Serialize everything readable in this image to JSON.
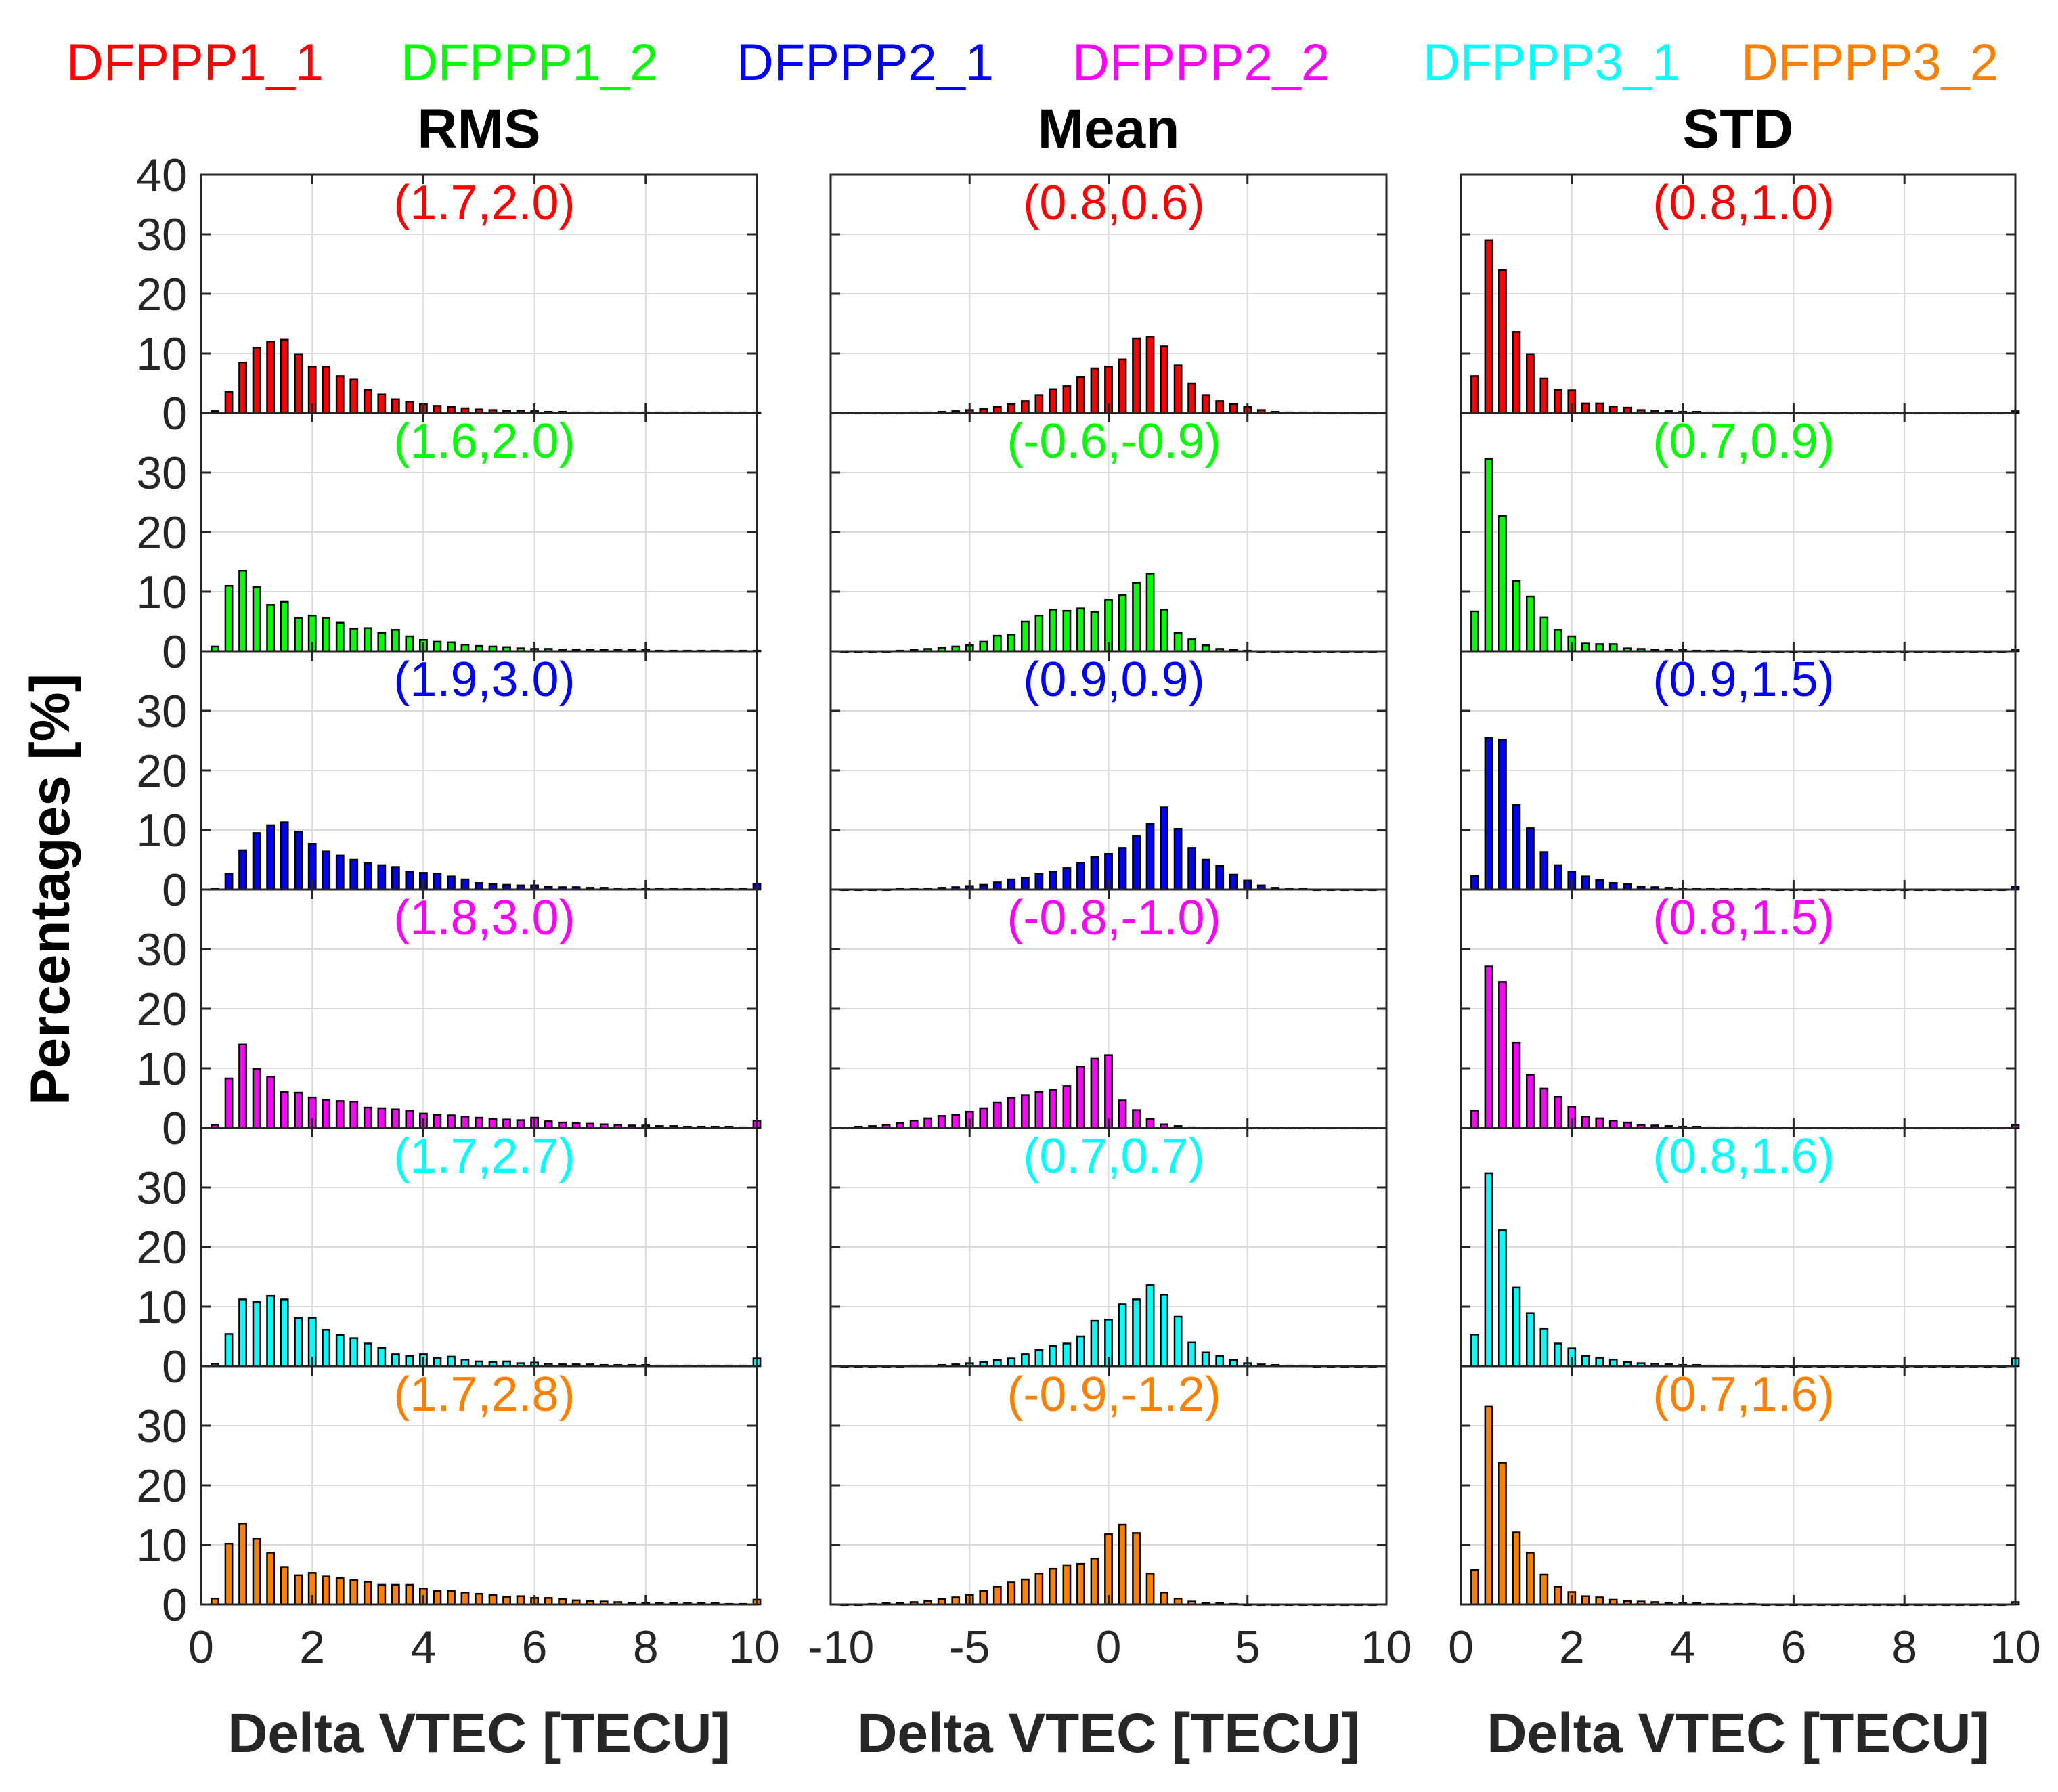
{
  "legend": [
    {
      "label": "DFPPP1_1",
      "color": "#ff0000"
    },
    {
      "label": "DFPPP1_2",
      "color": "#00ff00"
    },
    {
      "label": "DFPPP2_1",
      "color": "#0000ff"
    },
    {
      "label": "DFPPP2_2",
      "color": "#ff00ff"
    },
    {
      "label": "DFPPP3_1",
      "color": "#00ffff"
    },
    {
      "label": "DFPPP3_2",
      "color": "#ff8000"
    }
  ],
  "ylabel": "Percentages [%]",
  "chart_data": [
    {
      "type": "bar",
      "title": "RMS",
      "xlabel": "Delta VTEC [TECU]",
      "xlim": [
        0,
        10
      ],
      "xticks": [
        "0",
        "2",
        "4",
        "6",
        "8",
        "10"
      ],
      "x": [
        0.25,
        0.5,
        0.75,
        1.0,
        1.25,
        1.5,
        1.75,
        2.0,
        2.25,
        2.5,
        2.75,
        3.0,
        3.25,
        3.5,
        3.75,
        4.0,
        4.25,
        4.5,
        4.75,
        5.0,
        5.25,
        5.5,
        5.75,
        6.0,
        6.25,
        6.5,
        6.75,
        7.0,
        7.25,
        7.5,
        7.75,
        8.0,
        8.25,
        8.5,
        8.75,
        9.0,
        9.25,
        9.5,
        9.75,
        10.0
      ],
      "series": [
        {
          "name": "DFPPP1_1",
          "annotation": "(1.7,2.0)",
          "ylim": [
            0,
            40
          ],
          "yticks": [
            "0",
            "10",
            "20",
            "30",
            "40"
          ],
          "values": [
            0.3,
            3.5,
            8.5,
            11,
            12,
            12.3,
            9.8,
            7.8,
            7.8,
            6.2,
            5.6,
            3.9,
            3.1,
            2.3,
            1.9,
            1.5,
            1.2,
            1.0,
            0.8,
            0.6,
            0.5,
            0.4,
            0.4,
            0.3,
            0.2,
            0.2,
            0.1,
            0.1,
            0.1,
            0.1,
            0.1,
            0.1,
            0.1,
            0.1,
            0.1,
            0.1,
            0.1,
            0.1,
            0.1,
            0.1
          ]
        },
        {
          "name": "DFPPP1_2",
          "annotation": "(1.6,2.0)",
          "ylim": [
            0,
            40
          ],
          "yticks": [
            "0",
            "10",
            "20",
            "30"
          ],
          "values": [
            0.8,
            11,
            13.5,
            10.8,
            7.8,
            8.3,
            5.6,
            6.0,
            5.6,
            4.8,
            3.8,
            3.9,
            3.1,
            3.6,
            2.5,
            1.9,
            1.6,
            1.5,
            1.1,
            0.9,
            0.8,
            0.7,
            0.5,
            0.4,
            0.4,
            0.3,
            0.3,
            0.2,
            0.2,
            0.2,
            0.2,
            0.2,
            0.1,
            0.1,
            0.1,
            0.1,
            0.1,
            0.1,
            0.1,
            0.1
          ]
        },
        {
          "name": "DFPPP2_1",
          "annotation": "(1.9,3.0)",
          "ylim": [
            0,
            40
          ],
          "yticks": [
            "0",
            "10",
            "20",
            "30"
          ],
          "values": [
            0.2,
            2.7,
            6.6,
            9.5,
            10.8,
            11.3,
            9.7,
            7.7,
            6.4,
            5.7,
            5.0,
            4.4,
            4.1,
            3.8,
            3.0,
            2.8,
            2.7,
            2.2,
            1.7,
            1.1,
            0.9,
            0.8,
            0.7,
            0.7,
            0.5,
            0.4,
            0.4,
            0.3,
            0.3,
            0.2,
            0.2,
            0.2,
            0.1,
            0.1,
            0.1,
            0.1,
            0.1,
            0.1,
            0.1,
            1.0
          ]
        },
        {
          "name": "DFPPP2_2",
          "annotation": "(1.8,3.0)",
          "ylim": [
            0,
            40
          ],
          "yticks": [
            "0",
            "10",
            "20",
            "30"
          ],
          "values": [
            0.5,
            8.3,
            14.0,
            9.9,
            8.6,
            6.0,
            5.9,
            5.1,
            4.7,
            4.5,
            4.4,
            3.4,
            3.3,
            3.1,
            2.9,
            2.4,
            2.2,
            2.1,
            1.9,
            1.7,
            1.5,
            1.4,
            1.3,
            1.7,
            1.1,
            0.9,
            0.8,
            0.7,
            0.6,
            0.5,
            0.4,
            0.4,
            0.3,
            0.3,
            0.2,
            0.2,
            0.2,
            0.2,
            0.1,
            1.2
          ]
        },
        {
          "name": "DFPPP3_1",
          "annotation": "(1.7,2.7)",
          "ylim": [
            0,
            40
          ],
          "yticks": [
            "0",
            "10",
            "20",
            "30"
          ],
          "values": [
            0.4,
            5.4,
            11.2,
            10.8,
            11.8,
            11.2,
            8.1,
            8.1,
            6.1,
            5.2,
            4.7,
            3.8,
            3.1,
            2.0,
            1.7,
            2.0,
            1.4,
            1.6,
            1.1,
            0.8,
            0.7,
            0.8,
            0.5,
            0.6,
            0.4,
            0.3,
            0.3,
            0.3,
            0.2,
            0.2,
            0.2,
            0.2,
            0.1,
            0.1,
            0.1,
            0.1,
            0.1,
            0.1,
            0.1,
            1.3
          ]
        },
        {
          "name": "DFPPP3_2",
          "annotation": "(1.7,2.8)",
          "ylim": [
            0,
            40
          ],
          "yticks": [
            "0",
            "10",
            "20",
            "30"
          ],
          "values": [
            1.0,
            10.2,
            13.6,
            11.0,
            8.7,
            6.3,
            4.9,
            5.3,
            4.7,
            4.4,
            4.1,
            3.8,
            3.3,
            3.3,
            3.3,
            2.7,
            2.3,
            2.3,
            2.0,
            1.8,
            1.6,
            1.3,
            1.4,
            1.1,
            1.1,
            0.9,
            0.7,
            0.6,
            0.5,
            0.4,
            0.3,
            0.3,
            0.2,
            0.2,
            0.2,
            0.2,
            0.2,
            0.1,
            0.1,
            0.8
          ]
        }
      ]
    },
    {
      "type": "bar",
      "title": "Mean",
      "xlabel": "Delta VTEC [TECU]",
      "xlim": [
        -10,
        10
      ],
      "xticks": [
        "-10",
        "-5",
        "0",
        "5",
        "10"
      ],
      "x": [
        -9.5,
        -9.0,
        -8.5,
        -8.0,
        -7.5,
        -7.0,
        -6.5,
        -6.0,
        -5.5,
        -5.0,
        -4.5,
        -4.0,
        -3.5,
        -3.0,
        -2.5,
        -2.0,
        -1.5,
        -1.0,
        -0.5,
        0.0,
        0.5,
        1.0,
        1.5,
        2.0,
        2.5,
        3.0,
        3.5,
        4.0,
        4.5,
        5.0,
        5.5,
        6.0,
        6.5,
        7.0,
        7.5,
        8.0,
        8.5,
        9.0,
        9.5
      ],
      "series": [
        {
          "name": "DFPPP1_1",
          "annotation": "(0.8,0.6)",
          "ylim": [
            0,
            40
          ],
          "yticks": [],
          "values": [
            0,
            0,
            0,
            0,
            0,
            0.1,
            0.1,
            0.2,
            0.3,
            0.5,
            0.7,
            1.0,
            1.5,
            2.0,
            3.0,
            4.0,
            4.5,
            6.0,
            7.5,
            7.8,
            9.0,
            12.5,
            12.8,
            11.2,
            8.0,
            5.0,
            3.0,
            2.0,
            1.5,
            1.0,
            0.5,
            0.2,
            0.1,
            0.1,
            0.1,
            0,
            0,
            0,
            0
          ]
        },
        {
          "name": "DFPPP1_2",
          "annotation": "(-0.6,-0.9)",
          "ylim": [
            0,
            40
          ],
          "yticks": [],
          "values": [
            0,
            0,
            0,
            0,
            0.1,
            0.2,
            0.4,
            0.6,
            0.8,
            1.0,
            1.6,
            2.6,
            2.8,
            5.0,
            6.0,
            7.0,
            6.8,
            7.2,
            6.6,
            8.6,
            9.4,
            11.5,
            13.0,
            7.0,
            3.1,
            2.0,
            1.0,
            0.4,
            0.2,
            0.1,
            0,
            0,
            0,
            0,
            0,
            0,
            0,
            0,
            0
          ]
        },
        {
          "name": "DFPPP2_1",
          "annotation": "(0.9,0.9)",
          "ylim": [
            0,
            40
          ],
          "yticks": [],
          "values": [
            0,
            0,
            0,
            0,
            0.1,
            0.1,
            0.2,
            0.3,
            0.4,
            0.6,
            0.8,
            1.2,
            1.7,
            2.0,
            2.6,
            3.0,
            3.6,
            4.5,
            5.5,
            6.0,
            7.0,
            9.0,
            11.0,
            13.8,
            10.2,
            7.0,
            5.0,
            4.0,
            2.5,
            1.5,
            0.7,
            0.3,
            0.1,
            0.1,
            0,
            0,
            0,
            0,
            0
          ]
        },
        {
          "name": "DFPPP2_2",
          "annotation": "(-0.8,-1.0)",
          "ylim": [
            0,
            40
          ],
          "yticks": [],
          "values": [
            0,
            0.2,
            0.3,
            0.5,
            0.8,
            1.2,
            1.6,
            2.0,
            2.2,
            2.7,
            3.3,
            4.2,
            5.0,
            5.5,
            6.0,
            6.4,
            7.0,
            10.3,
            11.6,
            12.2,
            4.6,
            3.0,
            1.5,
            0.6,
            0.3,
            0.1,
            0,
            0,
            0,
            0,
            0,
            0,
            0,
            0,
            0,
            0,
            0,
            0,
            0
          ]
        },
        {
          "name": "DFPPP3_1",
          "annotation": "(0.7,0.7)",
          "ylim": [
            0,
            40
          ],
          "yticks": [],
          "values": [
            0,
            0,
            0,
            0,
            0,
            0.1,
            0.1,
            0.2,
            0.3,
            0.5,
            0.7,
            1.0,
            1.3,
            2.0,
            2.7,
            3.4,
            3.8,
            5.0,
            7.6,
            7.8,
            10.4,
            11.2,
            13.6,
            12.0,
            8.3,
            4.0,
            2.3,
            1.7,
            1.0,
            0.5,
            0.3,
            0.2,
            0.1,
            0.1,
            0,
            0,
            0,
            0,
            0
          ]
        },
        {
          "name": "DFPPP3_2",
          "annotation": "(-0.9,-1.2)",
          "ylim": [
            0,
            40
          ],
          "yticks": [],
          "values": [
            0,
            0,
            0.1,
            0.2,
            0.3,
            0.4,
            0.6,
            0.9,
            1.2,
            1.6,
            2.3,
            3.0,
            3.7,
            4.2,
            5.2,
            6.0,
            6.6,
            6.8,
            7.7,
            11.8,
            13.4,
            12.0,
            5.2,
            2.0,
            1.0,
            0.5,
            0.3,
            0.2,
            0.1,
            0,
            0,
            0,
            0,
            0,
            0,
            0,
            0,
            0,
            0
          ]
        }
      ]
    },
    {
      "type": "bar",
      "title": "STD",
      "xlabel": "Delta VTEC [TECU]",
      "xlim": [
        0,
        10
      ],
      "xticks": [
        "0",
        "2",
        "4",
        "6",
        "8",
        "10"
      ],
      "x": [
        0.25,
        0.5,
        0.75,
        1.0,
        1.25,
        1.5,
        1.75,
        2.0,
        2.25,
        2.5,
        2.75,
        3.0,
        3.25,
        3.5,
        3.75,
        4.0,
        4.25,
        4.5,
        4.75,
        5.0,
        5.25,
        5.5,
        5.75,
        6.0,
        6.25,
        6.5,
        6.75,
        7.0,
        7.25,
        7.5,
        7.75,
        8.0,
        8.25,
        8.5,
        8.75,
        9.0,
        9.25,
        9.5,
        9.75,
        10.0
      ],
      "series": [
        {
          "name": "DFPPP1_1",
          "annotation": "(0.8,1.0)",
          "ylim": [
            0,
            40
          ],
          "yticks": [],
          "values": [
            6.2,
            29.0,
            24.0,
            13.6,
            9.8,
            5.8,
            3.9,
            3.8,
            1.6,
            1.6,
            1.1,
            0.9,
            0.5,
            0.4,
            0.3,
            0.2,
            0.2,
            0.1,
            0.1,
            0.1,
            0.1,
            0.1,
            0,
            0,
            0,
            0,
            0,
            0,
            0,
            0,
            0,
            0,
            0,
            0,
            0,
            0,
            0,
            0,
            0,
            0.3
          ]
        },
        {
          "name": "DFPPP1_2",
          "annotation": "(0.7,0.9)",
          "ylim": [
            0,
            40
          ],
          "yticks": [],
          "values": [
            6.7,
            32.3,
            22.7,
            11.8,
            9.2,
            5.7,
            3.6,
            2.5,
            1.3,
            1.2,
            1.2,
            0.5,
            0.4,
            0.3,
            0.2,
            0.2,
            0.1,
            0.1,
            0.1,
            0.1,
            0,
            0,
            0,
            0,
            0,
            0,
            0,
            0,
            0,
            0,
            0,
            0,
            0,
            0,
            0,
            0,
            0,
            0,
            0,
            0.3
          ]
        },
        {
          "name": "DFPPP2_1",
          "annotation": "(0.9,1.5)",
          "ylim": [
            0,
            40
          ],
          "yticks": [],
          "values": [
            2.3,
            25.5,
            25.2,
            14.2,
            10.3,
            6.3,
            4.1,
            3.0,
            2.2,
            1.6,
            1.1,
            0.9,
            0.5,
            0.4,
            0.3,
            0.2,
            0.2,
            0.1,
            0.1,
            0.1,
            0.1,
            0.1,
            0,
            0,
            0,
            0,
            0,
            0,
            0,
            0,
            0,
            0,
            0,
            0,
            0,
            0,
            0,
            0,
            0,
            0.5
          ]
        },
        {
          "name": "DFPPP2_2",
          "annotation": "(0.8,1.5)",
          "ylim": [
            0,
            40
          ],
          "yticks": [],
          "values": [
            2.9,
            27.1,
            24.5,
            14.3,
            8.9,
            6.6,
            5.2,
            3.6,
            1.9,
            1.6,
            1.2,
            0.9,
            0.5,
            0.4,
            0.3,
            0.2,
            0.2,
            0.1,
            0.1,
            0.1,
            0.1,
            0,
            0,
            0,
            0,
            0,
            0,
            0,
            0,
            0,
            0,
            0,
            0,
            0,
            0,
            0,
            0,
            0,
            0,
            0.5
          ]
        },
        {
          "name": "DFPPP3_1",
          "annotation": "(0.8,1.6)",
          "ylim": [
            0,
            40
          ],
          "yticks": [],
          "values": [
            5.3,
            32.4,
            22.8,
            13.2,
            8.9,
            6.3,
            3.8,
            3.0,
            1.7,
            1.4,
            1.1,
            0.7,
            0.5,
            0.4,
            0.3,
            0.2,
            0.2,
            0.1,
            0.1,
            0.1,
            0.1,
            0,
            0,
            0,
            0,
            0,
            0,
            0,
            0,
            0,
            0,
            0,
            0,
            0,
            0,
            0,
            0,
            0,
            0,
            1.3
          ]
        },
        {
          "name": "DFPPP3_2",
          "annotation": "(0.7,1.6)",
          "ylim": [
            0,
            40
          ],
          "yticks": [],
          "values": [
            5.8,
            33.2,
            23.8,
            12.1,
            8.7,
            5.0,
            3.0,
            2.1,
            1.4,
            1.2,
            0.8,
            0.6,
            0.5,
            0.4,
            0.3,
            0.2,
            0.2,
            0.1,
            0.1,
            0.1,
            0.1,
            0,
            0,
            0,
            0,
            0,
            0,
            0,
            0,
            0,
            0,
            0,
            0,
            0,
            0,
            0,
            0,
            0,
            0,
            0.4
          ]
        }
      ]
    }
  ]
}
